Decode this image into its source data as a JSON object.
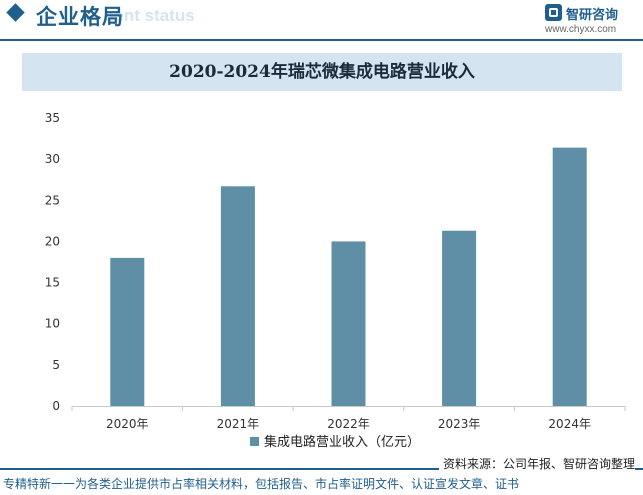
{
  "header": {
    "section_title": "企业格局",
    "section_subtitle": "nent status",
    "brand_name": "智研咨询",
    "brand_url": "www.chyxx.com"
  },
  "chart_data": {
    "type": "bar",
    "title": "2020-2024年瑞芯微集成电路营业收入",
    "categories": [
      "2020年",
      "2021年",
      "2022年",
      "2023年",
      "2024年"
    ],
    "series": [
      {
        "name": "集成电路营业收入（亿元）",
        "values": [
          18.0,
          26.7,
          20.0,
          21.3,
          31.4
        ]
      }
    ],
    "ylim": [
      0,
      35
    ],
    "yticks": [
      0,
      5,
      10,
      15,
      20,
      25,
      30,
      35
    ],
    "grid": false,
    "legend": "bottom",
    "colors": {
      "bar": "#5e8fa6",
      "axis": "#c8c8c8"
    }
  },
  "footer": {
    "source": "资料来源：公司年报、智研咨询整理",
    "slogan": "专精特新一一为各类企业提供市占率相关材料，包括报告、市占率证明文件、认证宣发文章、证书"
  }
}
